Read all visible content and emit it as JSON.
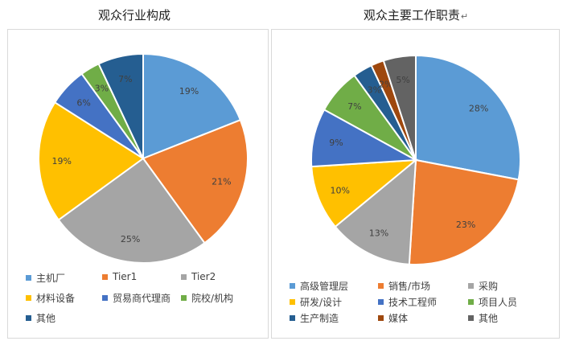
{
  "chart_data": [
    {
      "type": "pie",
      "title": "观众行业构成",
      "categories": [
        "主机厂",
        "Tier1",
        "Tier2",
        "材料设备",
        "贸易商代理商",
        "院校/机构",
        "其他"
      ],
      "values": [
        19,
        21,
        25,
        19,
        6,
        3,
        7
      ],
      "labels": [
        "19%",
        "21%",
        "25%",
        "19%",
        "6%",
        "3%",
        "7%"
      ],
      "colors": [
        "#5b9bd5",
        "#ed7d31",
        "#a5a5a5",
        "#ffc000",
        "#4472c4",
        "#70ad47",
        "#255e91"
      ],
      "legend_position": "bottom",
      "legend_labels": [
        "主机厂",
        "Tier1",
        "Tier2",
        "材料设备",
        "贸易商代理商",
        "院校/机构",
        "其他"
      ]
    },
    {
      "type": "pie",
      "title": "观众主要工作职责",
      "title_mark": "↵",
      "categories": [
        "高级管理层",
        "销售/市场",
        "采购",
        "研发/设计",
        "技术工程师",
        "项目人员",
        "生产制造",
        "媒体",
        "其他"
      ],
      "values": [
        28,
        23,
        13,
        10,
        9,
        7,
        3,
        2,
        5
      ],
      "labels": [
        "28%",
        "23%",
        "13%",
        "10%",
        "9%",
        "7%",
        "3%",
        "2%",
        "5%"
      ],
      "colors": [
        "#5b9bd5",
        "#ed7d31",
        "#a5a5a5",
        "#ffc000",
        "#4472c4",
        "#70ad47",
        "#255e91",
        "#9e480e",
        "#636363"
      ],
      "legend_position": "bottom",
      "legend_labels": [
        "高级管理层",
        "销售/市场",
        "采购",
        "研发/设计",
        "技术工程师",
        "项目人员",
        "生产制造",
        "媒体",
        "其他"
      ]
    }
  ]
}
